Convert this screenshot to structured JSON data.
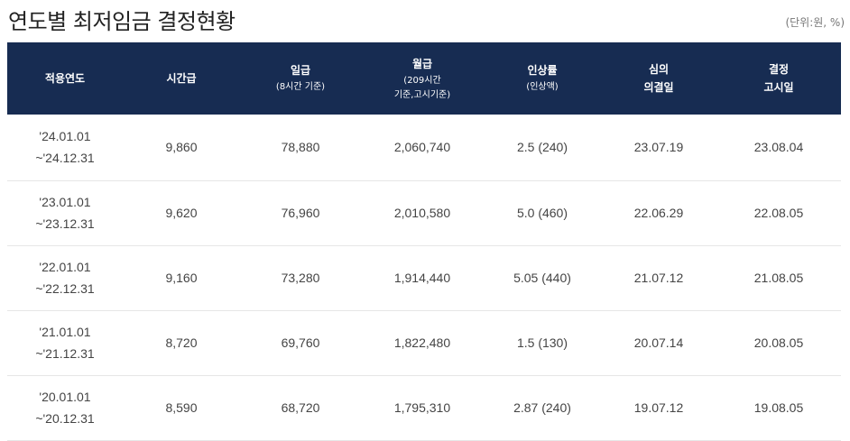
{
  "title": "연도별 최저임금 결정현황",
  "unit": "(단위:원, %)",
  "columns": [
    {
      "label": "적용연도",
      "sub": ""
    },
    {
      "label": "시간급",
      "sub": ""
    },
    {
      "label": "일급",
      "sub": "(8시간 기준)"
    },
    {
      "label": "월급",
      "sub": "(209시간",
      "sub2": "기준,고시기준)"
    },
    {
      "label": "인상률",
      "sub": "(인상액)"
    },
    {
      "label": "심의",
      "sub": "의결일"
    },
    {
      "label": "결정",
      "sub": "고시일"
    }
  ],
  "rows": [
    {
      "period_start": "'24.01.01",
      "period_end": "~'24.12.31",
      "hourly": "9,860",
      "daily": "78,880",
      "monthly": "2,060,740",
      "increase": "2.5 (240)",
      "deliberation": "23.07.19",
      "notice": "23.08.04"
    },
    {
      "period_start": "'23.01.01",
      "period_end": "~'23.12.31",
      "hourly": "9,620",
      "daily": "76,960",
      "monthly": "2,010,580",
      "increase": "5.0 (460)",
      "deliberation": "22.06.29",
      "notice": "22.08.05"
    },
    {
      "period_start": "'22.01.01",
      "period_end": "~'22.12.31",
      "hourly": "9,160",
      "daily": "73,280",
      "monthly": "1,914,440",
      "increase": "5.05 (440)",
      "deliberation": "21.07.12",
      "notice": "21.08.05"
    },
    {
      "period_start": "'21.01.01",
      "period_end": "~'21.12.31",
      "hourly": "8,720",
      "daily": "69,760",
      "monthly": "1,822,480",
      "increase": "1.5 (130)",
      "deliberation": "20.07.14",
      "notice": "20.08.05"
    },
    {
      "period_start": "'20.01.01",
      "period_end": "~'20.12.31",
      "hourly": "8,590",
      "daily": "68,720",
      "monthly": "1,795,310",
      "increase": "2.87 (240)",
      "deliberation": "19.07.12",
      "notice": "19.08.05"
    }
  ]
}
